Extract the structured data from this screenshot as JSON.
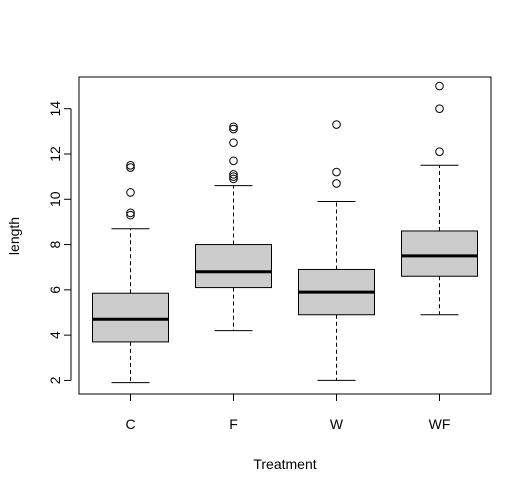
{
  "chart_data": {
    "type": "boxplot",
    "title": "",
    "xlabel": "Treatment",
    "ylabel": "length",
    "categories": [
      "C",
      "F",
      "W",
      "WF"
    ],
    "ylim": [
      1.4,
      15.4
    ],
    "yticks": [
      2,
      4,
      6,
      8,
      10,
      12,
      14
    ],
    "grid": false,
    "legend": "none",
    "box_fill": "#cccccc",
    "stroke": "#000000",
    "boxes": [
      {
        "category": "C",
        "whisker_low": 1.9,
        "q1": 3.7,
        "median": 4.7,
        "q3": 5.85,
        "whisker_high": 8.7,
        "outliers": [
          9.3,
          9.4,
          10.3,
          11.4,
          11.5
        ]
      },
      {
        "category": "F",
        "whisker_low": 4.2,
        "q1": 6.1,
        "median": 6.8,
        "q3": 8.0,
        "whisker_high": 10.6,
        "outliers": [
          10.9,
          11.0,
          11.1,
          11.7,
          12.5,
          13.1,
          13.2
        ]
      },
      {
        "category": "W",
        "whisker_low": 2.0,
        "q1": 4.9,
        "median": 5.9,
        "q3": 6.9,
        "whisker_high": 9.9,
        "outliers": [
          10.7,
          11.2,
          13.3
        ]
      },
      {
        "category": "WF",
        "whisker_low": 4.9,
        "q1": 6.6,
        "median": 7.5,
        "q3": 8.6,
        "whisker_high": 11.5,
        "outliers": [
          12.1,
          14.0,
          15.0
        ]
      }
    ]
  }
}
